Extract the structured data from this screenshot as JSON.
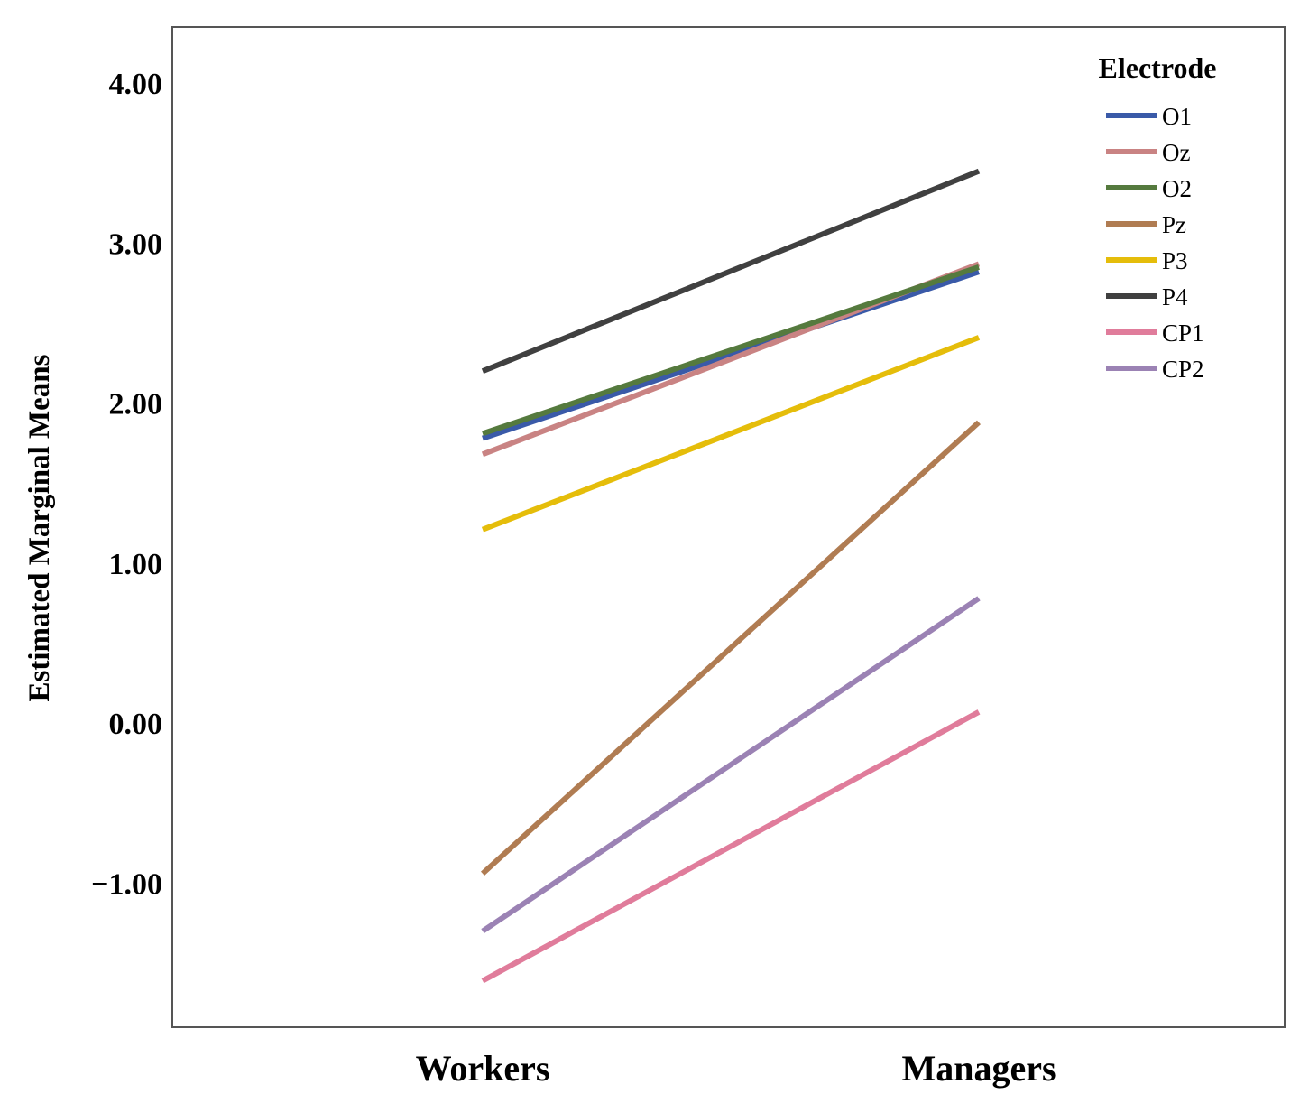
{
  "chart_data": {
    "type": "line",
    "title": "",
    "xlabel": "",
    "ylabel": "Estimated Marginal Means",
    "categories": [
      "Workers",
      "Managers"
    ],
    "ylim": [
      -1.9,
      4.35
    ],
    "yticks": [
      4.0,
      3.0,
      2.0,
      1.0,
      0.0,
      -1.0
    ],
    "ytick_labels": [
      "4.00",
      "3.00",
      "2.00",
      "1.00",
      "0.00",
      "−1.00"
    ],
    "grid": false,
    "legend": {
      "title": "Electrode",
      "placement": "top-right"
    },
    "series": [
      {
        "name": "O1",
        "color": "#3a5aa8",
        "values": [
          1.78,
          2.82
        ]
      },
      {
        "name": "Oz",
        "color": "#c98383",
        "values": [
          1.68,
          2.87
        ]
      },
      {
        "name": "O2",
        "color": "#557a3e",
        "values": [
          1.81,
          2.85
        ]
      },
      {
        "name": "Pz",
        "color": "#b07c52",
        "values": [
          -0.94,
          1.88
        ]
      },
      {
        "name": "P3",
        "color": "#e5bd0a",
        "values": [
          1.21,
          2.41
        ]
      },
      {
        "name": "P4",
        "color": "#404040",
        "values": [
          2.2,
          3.45
        ]
      },
      {
        "name": "CP1",
        "color": "#e07c9b",
        "values": [
          -1.61,
          0.07
        ]
      },
      {
        "name": "CP2",
        "color": "#9b82b4",
        "values": [
          -1.3,
          0.78
        ]
      }
    ]
  }
}
